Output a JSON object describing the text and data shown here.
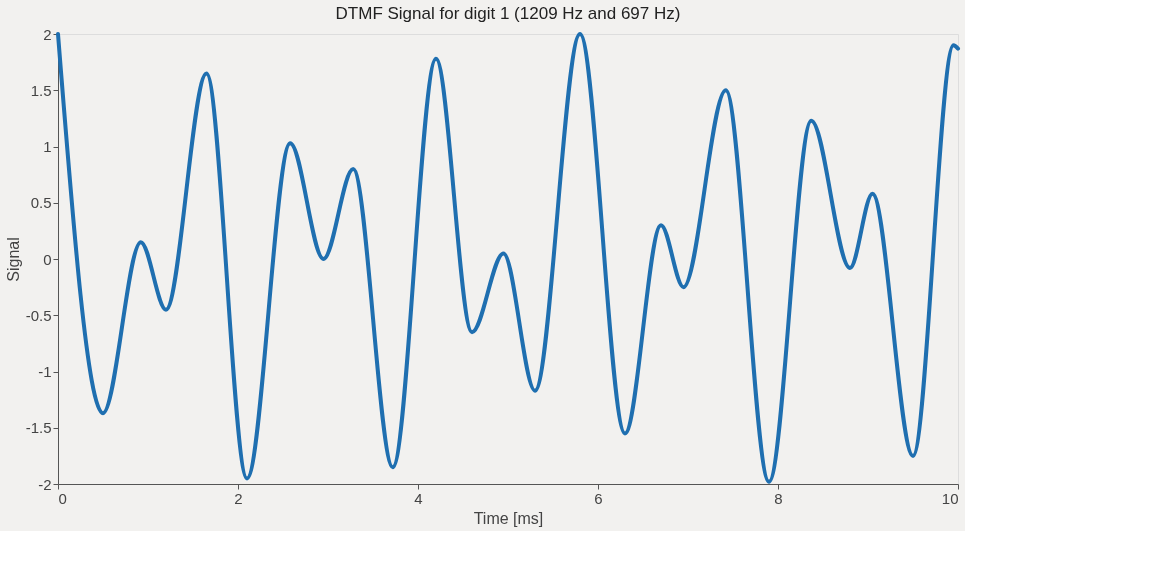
{
  "chart_data": {
    "type": "line",
    "title": "DTMF Signal for digit 1 (1209 Hz and 697 Hz)",
    "xlabel": "Time [ms]",
    "ylabel": "Signal",
    "x": [
      0,
      0.5,
      0.92,
      1.2,
      1.65,
      2.1,
      2.58,
      2.95,
      3.28,
      3.72,
      4.2,
      4.6,
      4.95,
      5.3,
      5.8,
      6.3,
      6.7,
      6.95,
      7.42,
      7.9,
      8.37,
      8.8,
      9.05,
      9.5,
      9.95,
      10
    ],
    "series": [
      {
        "color": "#1f6fb0",
        "values": [
          2.0,
          -1.37,
          0.15,
          -0.45,
          1.65,
          -1.95,
          1.03,
          0.0,
          0.8,
          -1.85,
          1.78,
          -0.65,
          0.05,
          -1.17,
          2.0,
          -1.55,
          0.3,
          -0.25,
          1.5,
          -1.98,
          1.23,
          -0.08,
          0.58,
          -1.75,
          1.9,
          1.87
        ]
      }
    ],
    "xlim": [
      0,
      10
    ],
    "xticks": [
      0,
      2,
      4,
      6,
      8,
      10
    ],
    "ylim": [
      -2,
      2
    ],
    "yticks": [
      -2,
      -1.5,
      -1,
      -0.5,
      0,
      0.5,
      1,
      1.5,
      2
    ],
    "grid": false,
    "legend": false,
    "marker": "none",
    "line_style": "solid"
  }
}
